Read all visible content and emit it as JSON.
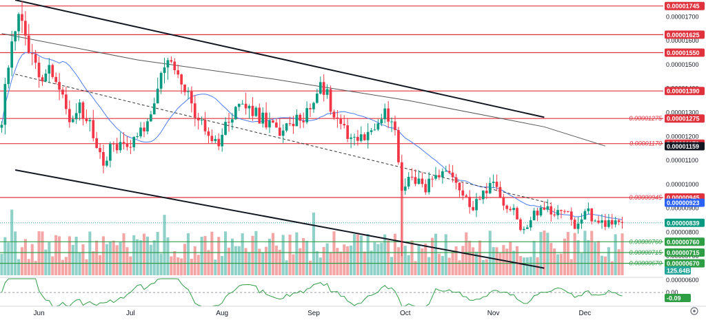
{
  "chart_data": {
    "type": "candlestick",
    "price_axis": {
      "ylim": [
        6.2e-06,
        1.77e-05
      ],
      "ticks": [
        "0.00001700",
        "0.00001600",
        "0.00001500",
        "0.00001400",
        "0.00001300",
        "0.00001200",
        "0.00001100",
        "0.00001000",
        "0.00000900",
        "0.00000800",
        "0.00000700",
        "0.00000600"
      ]
    },
    "time_axis": {
      "labels": [
        "Jun",
        "Jul",
        "Aug",
        "Sep",
        "Oct",
        "Nov",
        "Dec"
      ],
      "label_index": [
        11,
        38,
        65,
        92,
        119,
        145,
        172
      ],
      "bars": 184
    },
    "levels": [
      {
        "value": "0.00001745",
        "color": "#e0323c",
        "show_left": false
      },
      {
        "value": "0.00001625",
        "color": "#e0323c",
        "show_left": false
      },
      {
        "value": "0.00001550",
        "color": "#e0323c",
        "show_left": false
      },
      {
        "value": "0.00001390",
        "color": "#e0323c",
        "show_left": false
      },
      {
        "value": "0.00001275",
        "color": "#e0323c",
        "show_left": true
      },
      {
        "value": "0.00001170",
        "color": "#e0323c",
        "show_left": true
      },
      {
        "value": "0.00000945",
        "color": "#e0323c",
        "show_left": true
      },
      {
        "value": "0.00000760",
        "color": "#2e9e45",
        "show_left": true
      },
      {
        "value": "0.00000715",
        "color": "#2e9e45",
        "show_left": true
      },
      {
        "value": "0.00000670",
        "color": "#2e9e45",
        "show_left": true
      }
    ],
    "badges": [
      {
        "text": "0.00001159",
        "value": 1.159e-05,
        "color": "#131722"
      },
      {
        "text": "0.00000923",
        "value": 9.23e-06,
        "color": "#2962ff"
      },
      {
        "text": "0.00000839",
        "value": 8.39e-06,
        "color": "#089981"
      }
    ],
    "current_price": 8.39e-06,
    "volume_label": "125.64B",
    "indicator": {
      "zero_label": "0.00",
      "value_label": "-0.09"
    },
    "close_anchors": [
      [
        0,
        1.28e-05
      ],
      [
        3,
        1.62e-05
      ],
      [
        5,
        1.69e-05
      ],
      [
        8,
        1.57e-05
      ],
      [
        11,
        1.45e-05
      ],
      [
        14,
        1.5e-05
      ],
      [
        17,
        1.41e-05
      ],
      [
        20,
        1.28e-05
      ],
      [
        23,
        1.31e-05
      ],
      [
        26,
        1.24e-05
      ],
      [
        30,
        1.1e-05
      ],
      [
        33,
        1.17e-05
      ],
      [
        36,
        1.15e-05
      ],
      [
        39,
        1.2e-05
      ],
      [
        42,
        1.24e-05
      ],
      [
        45,
        1.36e-05
      ],
      [
        49,
        1.52e-05
      ],
      [
        52,
        1.43e-05
      ],
      [
        55,
        1.38e-05
      ],
      [
        58,
        1.26e-05
      ],
      [
        61,
        1.2e-05
      ],
      [
        64,
        1.18e-05
      ],
      [
        67,
        1.27e-05
      ],
      [
        70,
        1.34e-05
      ],
      [
        73,
        1.31e-05
      ],
      [
        76,
        1.28e-05
      ],
      [
        79,
        1.25e-05
      ],
      [
        82,
        1.22e-05
      ],
      [
        85,
        1.24e-05
      ],
      [
        88,
        1.28e-05
      ],
      [
        91,
        1.31e-05
      ],
      [
        94,
        1.44e-05
      ],
      [
        97,
        1.33e-05
      ],
      [
        100,
        1.26e-05
      ],
      [
        103,
        1.2e-05
      ],
      [
        106,
        1.19e-05
      ],
      [
        110,
        1.24e-05
      ],
      [
        113,
        1.29e-05
      ],
      [
        116,
        1.22e-05
      ],
      [
        118,
        9.7e-06
      ],
      [
        121,
        1.05e-05
      ],
      [
        124,
        9.8e-06
      ],
      [
        128,
        1.02e-05
      ],
      [
        131,
        1.04e-05
      ],
      [
        134,
        9.9e-06
      ],
      [
        137,
        9.6e-06
      ],
      [
        139,
        8.9e-06
      ],
      [
        142,
        9.7e-06
      ],
      [
        145,
        1.01e-05
      ],
      [
        148,
        9.3e-06
      ],
      [
        151,
        8.8e-06
      ],
      [
        154,
        8e-06
      ],
      [
        157,
        8.8e-06
      ],
      [
        160,
        9e-06
      ],
      [
        163,
        8.6e-06
      ],
      [
        166,
        9e-06
      ],
      [
        169,
        8.1e-06
      ],
      [
        172,
        9e-06
      ],
      [
        175,
        8.5e-06
      ],
      [
        178,
        8.4e-06
      ]
    ],
    "trendlines": [
      {
        "style": "solid",
        "points": [
          [
            4,
            1.77e-05
          ],
          [
            160,
            1.28e-05
          ]
        ]
      },
      {
        "style": "solid",
        "points": [
          [
            4,
            1.06e-05
          ],
          [
            160,
            6.5e-06
          ]
        ]
      },
      {
        "style": "dashed",
        "points": [
          [
            4,
            1.46e-05
          ],
          [
            162,
            9.2e-06
          ]
        ]
      }
    ]
  }
}
